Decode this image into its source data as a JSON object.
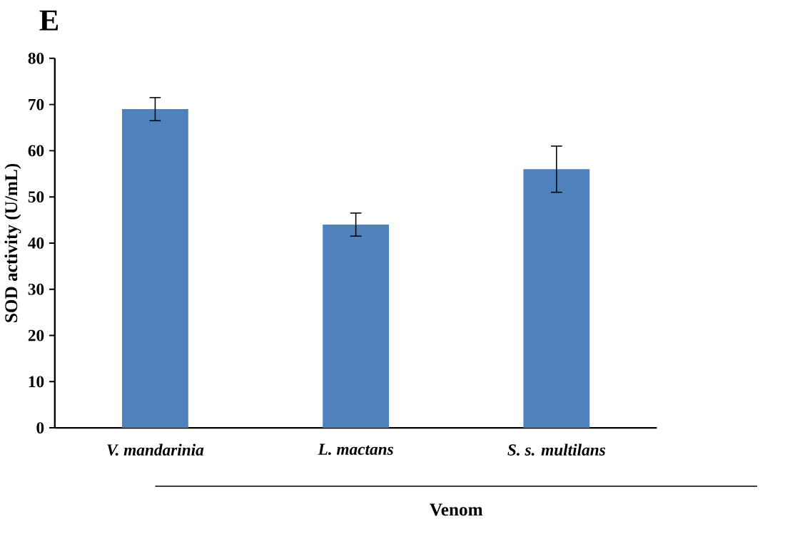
{
  "chart_data": {
    "type": "bar",
    "ylabel": "SOD activity (U/mL)",
    "xlabel": "Venom",
    "categories": [
      "*V. mandarinia*",
      "*L. mactans*",
      "*S. s. multilans*"
    ],
    "values": [
      69,
      44,
      56
    ],
    "errors": [
      2.5,
      2.5,
      5
    ],
    "color": "#4f81bd",
    "ylim": [
      0,
      80
    ],
    "yticks": [
      0,
      10,
      20,
      30,
      40,
      50,
      60,
      70,
      80
    ],
    "grid": false,
    "annotations": [
      "E"
    ]
  }
}
